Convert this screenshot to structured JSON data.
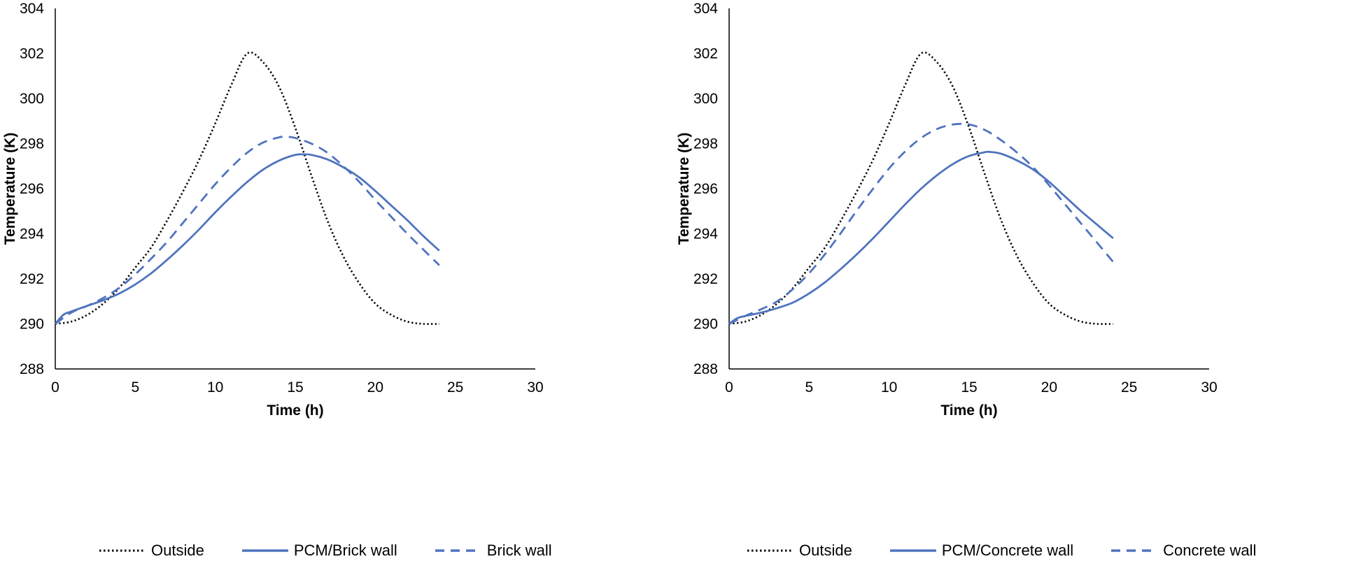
{
  "chart_data": [
    {
      "type": "line",
      "title": "",
      "xlabel": "Time (h)",
      "ylabel": "Temperature (K)",
      "xlim": [
        0,
        30
      ],
      "ylim": [
        288,
        304
      ],
      "xticks": [
        0,
        5,
        10,
        15,
        20,
        25,
        30
      ],
      "yticks": [
        288,
        290,
        292,
        294,
        296,
        298,
        300,
        302,
        304
      ],
      "grid": false,
      "legend_position": "bottom",
      "series": [
        {
          "name": "Outside",
          "style": "dotted",
          "color": "#000000",
          "x": [
            0,
            1,
            2,
            3,
            4,
            5,
            6,
            7,
            8,
            9,
            10,
            11,
            12,
            13,
            14,
            15,
            16,
            17,
            18,
            19,
            20,
            21,
            22,
            23,
            24
          ],
          "y": [
            290.0,
            290.1,
            290.4,
            290.9,
            291.6,
            292.5,
            293.4,
            294.6,
            295.9,
            297.3,
            298.9,
            300.6,
            302.0,
            301.6,
            300.5,
            298.7,
            296.6,
            294.6,
            293.0,
            291.8,
            290.9,
            290.4,
            290.1,
            290.0,
            290.0
          ]
        },
        {
          "name": "PCM/Brick wall",
          "style": "solid",
          "color": "#4f73be",
          "x": [
            0,
            0.5,
            1,
            2,
            3,
            4,
            5,
            6,
            7,
            8,
            9,
            10,
            11,
            12,
            13,
            14,
            15,
            15.5,
            16,
            17,
            18,
            19,
            20,
            21,
            22,
            23,
            24
          ],
          "y": [
            290.0,
            290.4,
            290.55,
            290.8,
            291.05,
            291.35,
            291.75,
            292.25,
            292.85,
            293.5,
            294.2,
            294.95,
            295.65,
            296.3,
            296.85,
            297.25,
            297.5,
            297.52,
            297.5,
            297.3,
            296.95,
            296.5,
            295.9,
            295.25,
            294.6,
            293.9,
            293.25
          ]
        },
        {
          "name": "Brick wall",
          "style": "dashed",
          "color": "#4f73be",
          "x": [
            0,
            1,
            2,
            3,
            4,
            5,
            6,
            7,
            8,
            9,
            10,
            11,
            12,
            13,
            14,
            14.5,
            15,
            16,
            17,
            18,
            19,
            20,
            21,
            22,
            23,
            24
          ],
          "y": [
            290.0,
            290.5,
            290.8,
            291.15,
            291.6,
            292.2,
            292.9,
            293.65,
            294.5,
            295.35,
            296.2,
            296.95,
            297.6,
            298.05,
            298.28,
            298.3,
            298.25,
            298.0,
            297.6,
            297.0,
            296.3,
            295.5,
            294.75,
            294.0,
            293.3,
            292.6
          ]
        }
      ],
      "legend": [
        "Outside",
        "PCM/Brick wall",
        "Brick wall"
      ]
    },
    {
      "type": "line",
      "title": "",
      "xlabel": "Time (h)",
      "ylabel": "Temperature (K)",
      "xlim": [
        0,
        30
      ],
      "ylim": [
        288,
        304
      ],
      "xticks": [
        0,
        5,
        10,
        15,
        20,
        25,
        30
      ],
      "yticks": [
        288,
        290,
        292,
        294,
        296,
        298,
        300,
        302,
        304
      ],
      "grid": false,
      "legend_position": "bottom",
      "series": [
        {
          "name": "Outside",
          "style": "dotted",
          "color": "#000000",
          "x": [
            0,
            1,
            2,
            3,
            4,
            5,
            6,
            7,
            8,
            9,
            10,
            11,
            12,
            13,
            14,
            15,
            16,
            17,
            18,
            19,
            20,
            21,
            22,
            23,
            24
          ],
          "y": [
            290.0,
            290.1,
            290.4,
            290.9,
            291.6,
            292.5,
            293.4,
            294.6,
            295.9,
            297.3,
            298.9,
            300.6,
            302.0,
            301.6,
            300.5,
            298.7,
            296.6,
            294.6,
            293.0,
            291.8,
            290.9,
            290.4,
            290.1,
            290.0,
            290.0
          ]
        },
        {
          "name": "PCM/Concrete wall",
          "style": "solid",
          "color": "#4f73be",
          "x": [
            0,
            0.5,
            1,
            2,
            3,
            4,
            5,
            6,
            7,
            8,
            9,
            10,
            11,
            12,
            13,
            14,
            15,
            16,
            16.3,
            17,
            18,
            19,
            20,
            21,
            22,
            23,
            24
          ],
          "y": [
            290.0,
            290.25,
            290.35,
            290.5,
            290.7,
            290.95,
            291.35,
            291.85,
            292.45,
            293.1,
            293.8,
            294.55,
            295.3,
            296.0,
            296.6,
            297.1,
            297.45,
            297.62,
            297.63,
            297.55,
            297.25,
            296.85,
            296.3,
            295.65,
            295.0,
            294.4,
            293.8
          ]
        },
        {
          "name": "Concrete wall",
          "style": "dashed",
          "color": "#4f73be",
          "x": [
            0,
            1,
            2,
            3,
            4,
            5,
            6,
            7,
            8,
            9,
            10,
            11,
            12,
            13,
            14,
            15,
            16,
            17,
            18,
            19,
            20,
            21,
            22,
            23,
            24
          ],
          "y": [
            290.0,
            290.35,
            290.65,
            291.0,
            291.55,
            292.25,
            293.1,
            294.05,
            295.05,
            296.0,
            296.9,
            297.65,
            298.25,
            298.65,
            298.85,
            298.85,
            298.6,
            298.15,
            297.6,
            296.95,
            296.15,
            295.3,
            294.45,
            293.6,
            292.75
          ]
        }
      ],
      "legend": [
        "Outside",
        "PCM/Concrete wall",
        "Concrete wall"
      ]
    }
  ]
}
